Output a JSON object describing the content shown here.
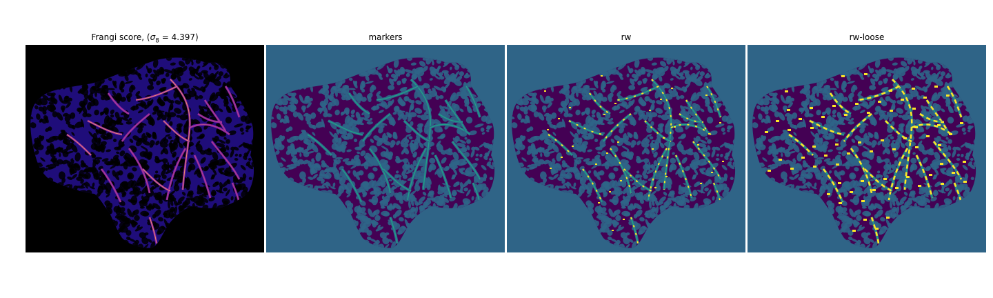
{
  "figure": {
    "panels": [
      {
        "id": "frangi",
        "title_prefix": "Frangi score, (",
        "title_sigma": "σ",
        "title_sub": "8",
        "title_value": " = 4.397)",
        "background": "#000000",
        "colors": {
          "base": "#1f0d7a",
          "mid": "#8e1fa8",
          "hot": "#f5a25f",
          "dark": "#000000"
        }
      },
      {
        "id": "markers",
        "title": "markers",
        "background": "#2f6487",
        "colors": {
          "base": "#440154",
          "line": "#1f9f88"
        }
      },
      {
        "id": "rw",
        "title": "rw",
        "background": "#2f6487",
        "colors": {
          "base": "#440154",
          "line": "#2a8f8a",
          "hot": "#fde725",
          "edge": "#20a486"
        }
      },
      {
        "id": "rw-loose",
        "title": "rw-loose",
        "background": "#2f6487",
        "colors": {
          "base": "#440154",
          "line": "#2a8f8a",
          "hot": "#fde725",
          "edge": "#20a486"
        }
      }
    ]
  }
}
